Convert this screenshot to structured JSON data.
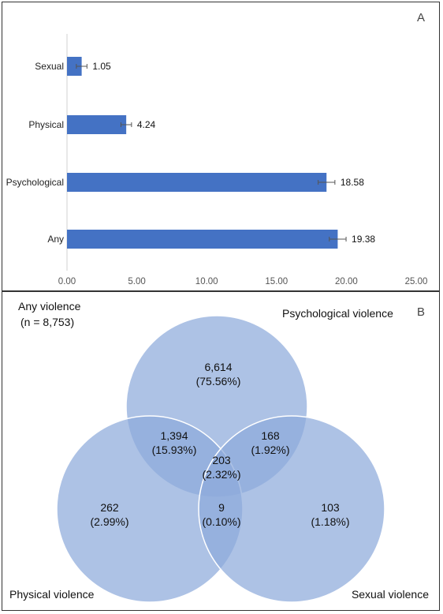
{
  "chart_data": [
    {
      "type": "bar",
      "orientation": "horizontal",
      "panel_label": "A",
      "categories": [
        "Sexual",
        "Physical",
        "Psychological",
        "Any"
      ],
      "values": [
        1.05,
        4.24,
        18.58,
        19.38
      ],
      "value_labels": [
        "1.05",
        "4.24",
        "18.58",
        "19.38"
      ],
      "error_bars": true,
      "xlim": [
        0,
        25
      ],
      "xticks": [
        "0.00",
        "5.00",
        "10.00",
        "15.00",
        "20.00",
        "25.00"
      ],
      "xtick_values": [
        0,
        5,
        10,
        15,
        20,
        25
      ],
      "bar_color": "#4472c4",
      "grid": false
    },
    {
      "type": "venn",
      "panel_label": "B",
      "title_line1": "Any violence",
      "title_line2": "(n = 8,753)",
      "sets": [
        "Psychological violence",
        "Physical violence",
        "Sexual violence"
      ],
      "regions": [
        {
          "sets": [
            "Psychological violence"
          ],
          "count": "6,614",
          "percent": "(75.56%)"
        },
        {
          "sets": [
            "Psychological violence",
            "Physical violence"
          ],
          "count": "1,394",
          "percent": "(15.93%)"
        },
        {
          "sets": [
            "Psychological violence",
            "Sexual violence"
          ],
          "count": "168",
          "percent": "(1.92%)"
        },
        {
          "sets": [
            "Psychological violence",
            "Physical violence",
            "Sexual violence"
          ],
          "count": "203",
          "percent": "(2.32%)"
        },
        {
          "sets": [
            "Physical violence"
          ],
          "count": "262",
          "percent": "(2.99%)"
        },
        {
          "sets": [
            "Physical violence",
            "Sexual violence"
          ],
          "count": "9",
          "percent": "(0.10%)"
        },
        {
          "sets": [
            "Sexual violence"
          ],
          "count": "103",
          "percent": "(1.18%)"
        }
      ],
      "circle_color": "#8eaadb"
    }
  ]
}
